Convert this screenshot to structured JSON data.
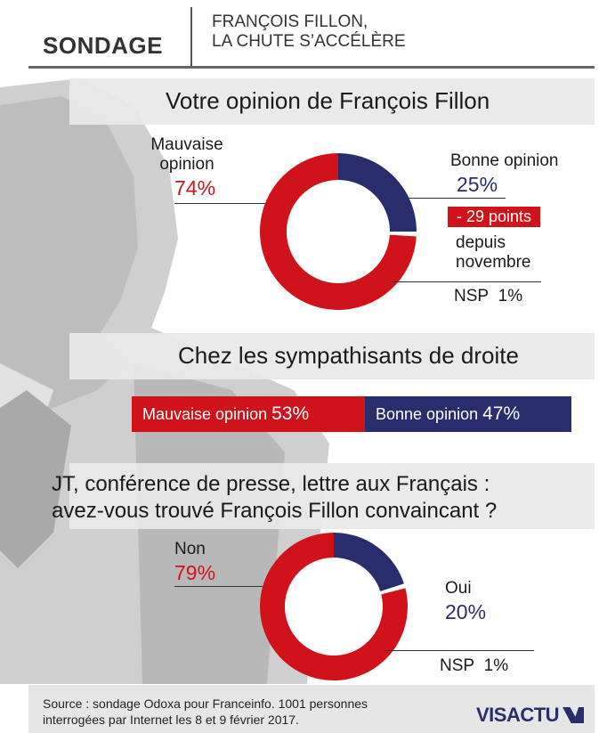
{
  "header": {
    "tag": "SONDAGE",
    "title_line1": "FRANÇOIS FILLON,",
    "title_line2": "LA CHUTE S’ACCÉLÈRE"
  },
  "colors": {
    "red": "#d0121b",
    "blue": "#2a2d6b",
    "grey_band": "#e8e8e8"
  },
  "chart_data": [
    {
      "type": "pie",
      "title": "Votre opinion de François Fillon",
      "slices": [
        {
          "label": "Mauvaise opinion",
          "value": 74,
          "display": "74%",
          "color": "#d0121b"
        },
        {
          "label": "Bonne opinion",
          "value": 25,
          "display": "25%",
          "color": "#2a2d6b"
        },
        {
          "label": "NSP",
          "value": 1,
          "display": "1%",
          "color": "#ffffff"
        }
      ],
      "annotation": {
        "badge": "- 29 points",
        "line1": "depuis",
        "line2": "novembre"
      },
      "labels": {
        "bad_line1": "Mauvaise",
        "bad_line2": "opinion",
        "good": "Bonne opinion",
        "nsp": "NSP",
        "nsp_value": "1%"
      }
    },
    {
      "type": "bar",
      "title": "Chez les sympathisants de droite",
      "series": [
        {
          "name": "Mauvaise opinion",
          "value": 53,
          "display": "53%",
          "color": "#d0121b"
        },
        {
          "name": "Bonne opinion",
          "value": 47,
          "display": "47%",
          "color": "#2a2d6b"
        }
      ]
    },
    {
      "type": "pie",
      "title_line1": "JT, conférence de presse, lettre aux Français :",
      "title_line2": "avez-vous trouvé François Fillon convaincant ?",
      "slices": [
        {
          "label": "Non",
          "value": 79,
          "display": "79%",
          "color": "#d0121b"
        },
        {
          "label": "Oui",
          "value": 20,
          "display": "20%",
          "color": "#2a2d6b"
        },
        {
          "label": "NSP",
          "value": 1,
          "display": "1%",
          "color": "#ffffff"
        }
      ],
      "labels": {
        "nsp": "NSP",
        "nsp_value": "1%"
      }
    }
  ],
  "footer": {
    "source_line1": "Source : sondage Odoxa pour Franceinfo. 1001 personnes",
    "source_line2": "interrogées par Internet les 8 et 9 février 2017.",
    "logo": "VISACTU"
  }
}
